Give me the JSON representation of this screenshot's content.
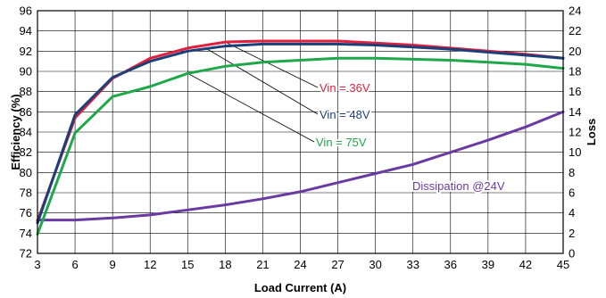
{
  "chart_data": {
    "type": "line",
    "title": "",
    "xlabel": "Load Current (A)",
    "ylabel": "Efficiency (%)",
    "y2label": "Loss",
    "xlim": [
      3,
      45
    ],
    "ylim": [
      72,
      96
    ],
    "y2lim": [
      0,
      24
    ],
    "xticks": [
      "3",
      "6",
      "9",
      "12",
      "15",
      "18",
      "21",
      "24",
      "27",
      "30",
      "33",
      "36",
      "39",
      "42",
      "45"
    ],
    "yticks": [
      "72",
      "74",
      "76",
      "78",
      "80",
      "82",
      "84",
      "86",
      "88",
      "90",
      "92",
      "94",
      "96"
    ],
    "y2ticks": [
      "0",
      "2",
      "4",
      "6",
      "8",
      "10",
      "12",
      "14",
      "16",
      "18",
      "20",
      "22",
      "24"
    ],
    "grid": true,
    "series": [
      {
        "name": "Vin = 36V",
        "axis": "left",
        "color": "#e0203c",
        "x": [
          3,
          6,
          9,
          12,
          15,
          18,
          21,
          24,
          27,
          30,
          33,
          36,
          39,
          42,
          45
        ],
        "y": [
          75.2,
          85.4,
          89.3,
          91.3,
          92.3,
          92.9,
          93.0,
          93.0,
          93.0,
          92.8,
          92.6,
          92.3,
          92.0,
          91.7,
          91.3
        ]
      },
      {
        "name": "Vin = 48V",
        "axis": "left",
        "color": "#1c3f7a",
        "x": [
          3,
          6,
          9,
          12,
          15,
          18,
          21,
          24,
          27,
          30,
          33,
          36,
          39,
          42,
          45
        ],
        "y": [
          75.0,
          85.7,
          89.4,
          91.0,
          92.0,
          92.5,
          92.7,
          92.7,
          92.7,
          92.6,
          92.4,
          92.2,
          91.9,
          91.6,
          91.3
        ]
      },
      {
        "name": "Vin = 75V",
        "axis": "left",
        "color": "#1fa84a",
        "x": [
          3,
          6,
          9,
          12,
          15,
          18,
          21,
          24,
          27,
          30,
          33,
          36,
          39,
          42,
          45
        ],
        "y": [
          73.9,
          83.9,
          87.5,
          88.5,
          89.8,
          90.5,
          90.9,
          91.1,
          91.3,
          91.3,
          91.2,
          91.1,
          90.9,
          90.7,
          90.3
        ]
      },
      {
        "name": "Dissipation @24V",
        "axis": "right",
        "color": "#6a3aa2",
        "x": [
          3,
          6,
          9,
          12,
          15,
          18,
          21,
          24,
          27,
          30,
          33,
          36,
          39,
          42,
          45
        ],
        "y": [
          3.3,
          3.3,
          3.5,
          3.8,
          4.3,
          4.8,
          5.4,
          6.1,
          7.0,
          7.9,
          8.8,
          10.0,
          11.2,
          12.5,
          14.0
        ]
      }
    ],
    "annotations": [
      {
        "text": "Vin = 36V",
        "color": "#e0203c",
        "points_to_x": 18,
        "series": 0
      },
      {
        "text": "Vin = 48V",
        "color": "#1c3f7a",
        "points_to_x": 16.5,
        "series": 1
      },
      {
        "text": "Vin = 75V",
        "color": "#1fa84a",
        "points_to_x": 15,
        "series": 2
      },
      {
        "text": "Dissipation @24V",
        "color": "#6a3aa2",
        "series": 3
      }
    ]
  }
}
